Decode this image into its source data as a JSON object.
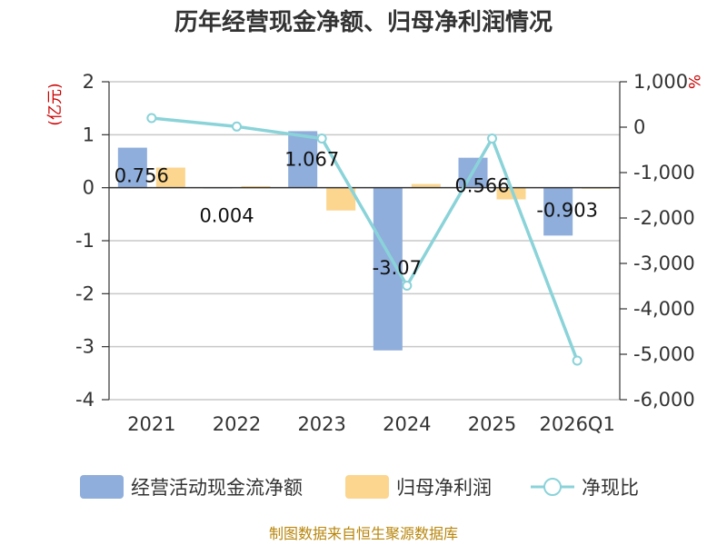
{
  "title": "历年经营现金净额、归母净利润情况",
  "source": "制图数据来自恒生聚源数据库",
  "chart_data": {
    "type": "bar",
    "title": "历年经营现金净额、归母净利润情况",
    "categories": [
      "2021",
      "2022",
      "2023",
      "2024",
      "2025",
      "2026Q1"
    ],
    "left_axis": {
      "unit": "(亿元)",
      "ylim": [
        -4,
        2
      ],
      "ticks": [
        "2",
        "1",
        "0",
        "-1",
        "-2",
        "-3",
        "-4"
      ]
    },
    "right_axis": {
      "unit": "%",
      "ylim": [
        -6000,
        1000
      ],
      "ticks": [
        "1,000",
        "0",
        "-1,000",
        "-2,000",
        "-3,000",
        "-4,000",
        "-5,000",
        "-6,000"
      ]
    },
    "grid": true,
    "legend_position": "bottom",
    "series": [
      {
        "name": "经营活动现金流净额",
        "type": "bar",
        "axis": "left",
        "color": "#8faedb",
        "values": [
          0.756,
          0.004,
          1.067,
          -3.07,
          0.566,
          -0.903
        ],
        "labels": [
          "0.756",
          "0.004",
          "1.067",
          "-3.07",
          "0.566",
          "-0.903"
        ]
      },
      {
        "name": "归母净利润",
        "type": "bar",
        "axis": "left",
        "color": "#fcd58f",
        "values": [
          0.38,
          0.03,
          -0.43,
          0.07,
          -0.22,
          -0.02
        ]
      },
      {
        "name": "净现比",
        "type": "line",
        "axis": "right",
        "color": "#8ad3d9",
        "values": [
          200,
          14,
          -250,
          -3490,
          -250,
          -5140
        ]
      }
    ]
  }
}
